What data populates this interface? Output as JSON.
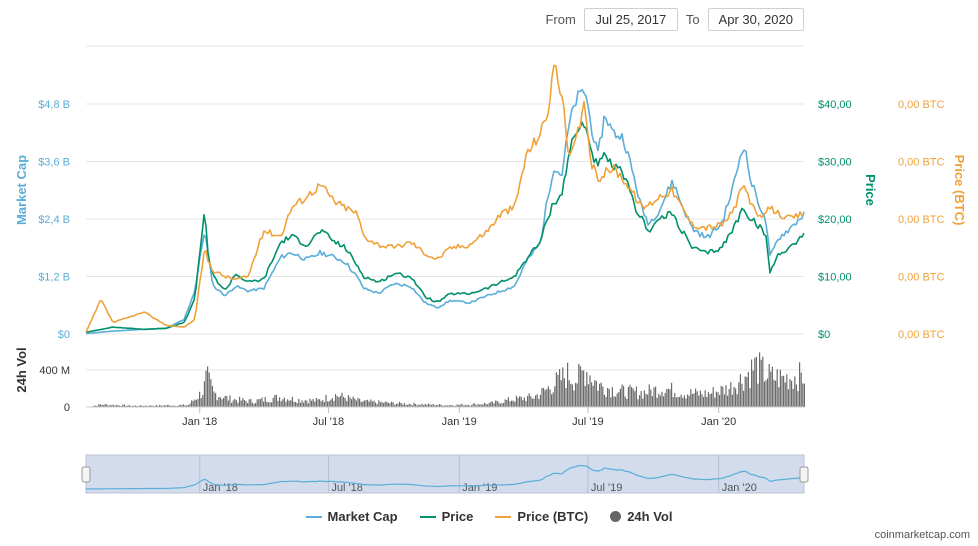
{
  "toolbar": {
    "from_label": "From",
    "from_value": "Jul 25, 2017",
    "to_label": "To",
    "to_value": "Apr 30, 2020"
  },
  "colors": {
    "market_cap": "#5aaed8",
    "price": "#00906b",
    "price_btc": "#f0a23a",
    "volume": "#6b6b6b",
    "navigator_fill": "#d3dcec"
  },
  "legend": {
    "market_cap": "Market Cap",
    "price": "Price",
    "price_btc": "Price (BTC)",
    "volume": "24h Vol"
  },
  "credit": "coinmarketcap.com",
  "chart_data": {
    "type": "line",
    "x_range": [
      "2017-07-25",
      "2020-04-30"
    ],
    "x_tick_labels": [
      "Jan '18",
      "Jul '18",
      "Jan '19",
      "Jul '19",
      "Jan '20"
    ],
    "x_tick_dates": [
      "2018-01-01",
      "2018-07-01",
      "2019-01-01",
      "2019-07-01",
      "2020-01-01"
    ],
    "axes": {
      "market_cap": {
        "title": "Market Cap",
        "ticks": [
          "$0",
          "$1,2 B",
          "$2,4 B",
          "$3,6 B",
          "$4,8 B"
        ],
        "range": [
          0,
          4.8
        ],
        "unit": "billion USD"
      },
      "price": {
        "title": "Price",
        "ticks": [
          "$0",
          "$10,00",
          "$20,00",
          "$30,00",
          "$40,00"
        ],
        "range": [
          0,
          40
        ]
      },
      "price_btc": {
        "title": "Price (BTC)",
        "ticks": [
          "0,00 BTC",
          "0,00 BTC",
          "0,00 BTC",
          "0,00 BTC",
          "0,00 BTC"
        ]
      },
      "volume": {
        "title": "24h Vol",
        "ticks": [
          "0",
          "400 M"
        ],
        "range": [
          0,
          400
        ],
        "unit": "million USD"
      }
    },
    "series": [
      {
        "name": "Market Cap",
        "axis": "market_cap",
        "points": [
          [
            "2017-07-25",
            0.01
          ],
          [
            "2017-09-01",
            0.06
          ],
          [
            "2017-10-15",
            0.1
          ],
          [
            "2017-11-15",
            0.12
          ],
          [
            "2017-12-10",
            0.3
          ],
          [
            "2017-12-25",
            0.9
          ],
          [
            "2018-01-08",
            2.2
          ],
          [
            "2018-01-12",
            1.7
          ],
          [
            "2018-01-20",
            1.0
          ],
          [
            "2018-02-06",
            0.8
          ],
          [
            "2018-02-20",
            1.0
          ],
          [
            "2018-03-10",
            0.9
          ],
          [
            "2018-04-01",
            0.95
          ],
          [
            "2018-04-25",
            1.6
          ],
          [
            "2018-05-10",
            1.7
          ],
          [
            "2018-06-01",
            1.55
          ],
          [
            "2018-06-20",
            1.7
          ],
          [
            "2018-07-10",
            1.6
          ],
          [
            "2018-07-25",
            1.5
          ],
          [
            "2018-08-10",
            1.2
          ],
          [
            "2018-08-20",
            0.95
          ],
          [
            "2018-09-10",
            0.85
          ],
          [
            "2018-10-01",
            1.05
          ],
          [
            "2018-10-25",
            1.0
          ],
          [
            "2018-11-14",
            0.65
          ],
          [
            "2018-12-01",
            0.55
          ],
          [
            "2018-12-20",
            0.7
          ],
          [
            "2019-01-15",
            0.65
          ],
          [
            "2019-02-10",
            0.8
          ],
          [
            "2019-03-01",
            0.9
          ],
          [
            "2019-03-20",
            1.0
          ],
          [
            "2019-04-05",
            1.5
          ],
          [
            "2019-04-25",
            1.9
          ],
          [
            "2019-05-05",
            2.8
          ],
          [
            "2019-05-14",
            3.5
          ],
          [
            "2019-05-25",
            3.3
          ],
          [
            "2019-06-05",
            4.4
          ],
          [
            "2019-06-15",
            4.9
          ],
          [
            "2019-06-27",
            5.1
          ],
          [
            "2019-07-05",
            4.4
          ],
          [
            "2019-07-15",
            3.7
          ],
          [
            "2019-07-25",
            4.6
          ],
          [
            "2019-08-05",
            4.2
          ],
          [
            "2019-08-20",
            4.1
          ],
          [
            "2019-09-05",
            3.2
          ],
          [
            "2019-09-15",
            2.6
          ],
          [
            "2019-09-25",
            2.3
          ],
          [
            "2019-10-10",
            2.6
          ],
          [
            "2019-10-28",
            3.2
          ],
          [
            "2019-11-10",
            2.7
          ],
          [
            "2019-11-25",
            2.2
          ],
          [
            "2019-12-15",
            2.0
          ],
          [
            "2020-01-05",
            2.3
          ],
          [
            "2020-01-20",
            3.0
          ],
          [
            "2020-02-05",
            4.0
          ],
          [
            "2020-02-15",
            3.2
          ],
          [
            "2020-02-25",
            2.8
          ],
          [
            "2020-03-08",
            2.3
          ],
          [
            "2020-03-13",
            1.6
          ],
          [
            "2020-03-25",
            2.0
          ],
          [
            "2020-04-10",
            2.2
          ],
          [
            "2020-04-30",
            2.5
          ]
        ]
      },
      {
        "name": "Price",
        "axis": "price",
        "points": [
          [
            "2017-07-25",
            0.3
          ],
          [
            "2017-09-01",
            1.2
          ],
          [
            "2017-10-15",
            0.8
          ],
          [
            "2017-11-15",
            1.0
          ],
          [
            "2017-12-10",
            2.0
          ],
          [
            "2017-12-25",
            6.0
          ],
          [
            "2018-01-08",
            22.0
          ],
          [
            "2018-01-12",
            14.0
          ],
          [
            "2018-01-20",
            10.0
          ],
          [
            "2018-02-06",
            7.5
          ],
          [
            "2018-02-20",
            10.5
          ],
          [
            "2018-03-10",
            9.0
          ],
          [
            "2018-04-01",
            9.5
          ],
          [
            "2018-04-25",
            16.0
          ],
          [
            "2018-05-10",
            17.0
          ],
          [
            "2018-06-01",
            15.5
          ],
          [
            "2018-06-20",
            18.0
          ],
          [
            "2018-07-10",
            16.0
          ],
          [
            "2018-07-25",
            15.0
          ],
          [
            "2018-08-10",
            12.0
          ],
          [
            "2018-08-20",
            10.0
          ],
          [
            "2018-09-10",
            9.0
          ],
          [
            "2018-10-01",
            10.5
          ],
          [
            "2018-10-25",
            10.0
          ],
          [
            "2018-11-14",
            6.5
          ],
          [
            "2018-12-01",
            5.5
          ],
          [
            "2018-12-20",
            7.0
          ],
          [
            "2019-01-15",
            7.0
          ],
          [
            "2019-02-10",
            8.0
          ],
          [
            "2019-03-01",
            9.0
          ],
          [
            "2019-03-20",
            10.0
          ],
          [
            "2019-04-05",
            13.0
          ],
          [
            "2019-04-25",
            16.0
          ],
          [
            "2019-05-05",
            20.0
          ],
          [
            "2019-05-14",
            23.0
          ],
          [
            "2019-05-25",
            24.0
          ],
          [
            "2019-06-05",
            32.0
          ],
          [
            "2019-06-15",
            35.0
          ],
          [
            "2019-06-27",
            37.0
          ],
          [
            "2019-07-05",
            32.0
          ],
          [
            "2019-07-15",
            29.0
          ],
          [
            "2019-07-25",
            31.0
          ],
          [
            "2019-08-05",
            29.0
          ],
          [
            "2019-08-20",
            28.0
          ],
          [
            "2019-09-05",
            22.0
          ],
          [
            "2019-09-15",
            20.0
          ],
          [
            "2019-09-25",
            18.0
          ],
          [
            "2019-10-10",
            20.0
          ],
          [
            "2019-10-28",
            21.0
          ],
          [
            "2019-11-10",
            18.0
          ],
          [
            "2019-11-25",
            15.0
          ],
          [
            "2019-12-15",
            14.0
          ],
          [
            "2020-01-05",
            15.0
          ],
          [
            "2020-01-20",
            18.0
          ],
          [
            "2020-02-05",
            22.0
          ],
          [
            "2020-02-15",
            20.0
          ],
          [
            "2020-02-25",
            19.0
          ],
          [
            "2020-03-08",
            17.0
          ],
          [
            "2020-03-13",
            10.5
          ],
          [
            "2020-03-25",
            14.0
          ],
          [
            "2020-04-10",
            15.0
          ],
          [
            "2020-04-30",
            17.5
          ]
        ]
      },
      {
        "name": "Price (BTC)",
        "axis": "price_btc",
        "points": [
          [
            "2017-07-25",
            0.3
          ],
          [
            "2017-08-15",
            6.0
          ],
          [
            "2017-09-01",
            2.0
          ],
          [
            "2017-10-15",
            3.8
          ],
          [
            "2017-11-15",
            1.5
          ],
          [
            "2017-12-10",
            1.2
          ],
          [
            "2017-12-25",
            2.5
          ],
          [
            "2018-01-08",
            15.0
          ],
          [
            "2018-01-12",
            13.0
          ],
          [
            "2018-01-20",
            11.0
          ],
          [
            "2018-02-06",
            10.0
          ],
          [
            "2018-02-20",
            9.5
          ],
          [
            "2018-03-10",
            10.0
          ],
          [
            "2018-04-01",
            18.0
          ],
          [
            "2018-04-25",
            17.0
          ],
          [
            "2018-05-10",
            22.0
          ],
          [
            "2018-06-01",
            24.0
          ],
          [
            "2018-06-20",
            26.0
          ],
          [
            "2018-07-10",
            23.0
          ],
          [
            "2018-07-25",
            22.0
          ],
          [
            "2018-08-10",
            21.0
          ],
          [
            "2018-08-20",
            17.0
          ],
          [
            "2018-09-10",
            15.5
          ],
          [
            "2018-10-01",
            15.0
          ],
          [
            "2018-10-25",
            16.0
          ],
          [
            "2018-11-14",
            14.0
          ],
          [
            "2018-12-01",
            13.0
          ],
          [
            "2018-12-20",
            15.0
          ],
          [
            "2019-01-15",
            15.5
          ],
          [
            "2019-02-10",
            18.0
          ],
          [
            "2019-03-01",
            21.0
          ],
          [
            "2019-03-20",
            22.0
          ],
          [
            "2019-04-05",
            31.0
          ],
          [
            "2019-04-25",
            35.0
          ],
          [
            "2019-05-05",
            38.0
          ],
          [
            "2019-05-14",
            47.0
          ],
          [
            "2019-05-25",
            42.0
          ],
          [
            "2019-06-05",
            30.0
          ],
          [
            "2019-06-15",
            34.0
          ],
          [
            "2019-06-27",
            40.0
          ],
          [
            "2019-07-05",
            30.0
          ],
          [
            "2019-07-15",
            27.0
          ],
          [
            "2019-07-25",
            28.0
          ],
          [
            "2019-08-05",
            29.0
          ],
          [
            "2019-08-20",
            27.0
          ],
          [
            "2019-09-05",
            24.0
          ],
          [
            "2019-09-15",
            22.0
          ],
          [
            "2019-09-25",
            22.5
          ],
          [
            "2019-10-10",
            24.0
          ],
          [
            "2019-10-28",
            25.0
          ],
          [
            "2019-11-10",
            22.0
          ],
          [
            "2019-11-25",
            19.0
          ],
          [
            "2019-12-15",
            18.5
          ],
          [
            "2020-01-05",
            19.0
          ],
          [
            "2020-01-20",
            21.0
          ],
          [
            "2020-02-05",
            26.0
          ],
          [
            "2020-02-15",
            23.0
          ],
          [
            "2020-02-25",
            20.0
          ],
          [
            "2020-03-08",
            21.0
          ],
          [
            "2020-03-13",
            22.0
          ],
          [
            "2020-03-25",
            21.0
          ],
          [
            "2020-04-10",
            20.0
          ],
          [
            "2020-04-30",
            21.0
          ]
        ]
      },
      {
        "name": "24h Vol",
        "axis": "volume",
        "type": "bar",
        "points": [
          [
            "2017-07-25",
            0
          ],
          [
            "2017-08-15",
            40
          ],
          [
            "2017-10-01",
            20
          ],
          [
            "2017-12-15",
            30
          ],
          [
            "2018-01-05",
            250
          ],
          [
            "2018-01-10",
            480
          ],
          [
            "2018-01-20",
            220
          ],
          [
            "2018-02-10",
            130
          ],
          [
            "2018-03-15",
            90
          ],
          [
            "2018-04-25",
            160
          ],
          [
            "2018-05-15",
            120
          ],
          [
            "2018-06-15",
            100
          ],
          [
            "2018-07-10",
            190
          ],
          [
            "2018-08-15",
            90
          ],
          [
            "2018-10-01",
            60
          ],
          [
            "2018-11-15",
            40
          ],
          [
            "2018-12-15",
            30
          ],
          [
            "2019-01-15",
            40
          ],
          [
            "2019-02-15",
            60
          ],
          [
            "2019-03-15",
            120
          ],
          [
            "2019-04-15",
            160
          ],
          [
            "2019-05-01",
            260
          ],
          [
            "2019-05-15",
            380
          ],
          [
            "2019-06-01",
            520
          ],
          [
            "2019-06-15",
            440
          ],
          [
            "2019-06-27",
            600
          ],
          [
            "2019-07-15",
            350
          ],
          [
            "2019-08-15",
            250
          ],
          [
            "2019-09-15",
            230
          ],
          [
            "2019-10-15",
            300
          ],
          [
            "2019-11-15",
            220
          ],
          [
            "2019-12-15",
            210
          ],
          [
            "2020-01-15",
            300
          ],
          [
            "2020-02-10",
            520
          ],
          [
            "2020-02-20",
            660
          ],
          [
            "2020-03-13",
            480
          ],
          [
            "2020-04-01",
            460
          ],
          [
            "2020-04-30",
            500
          ]
        ]
      }
    ],
    "legend_position": "bottom"
  }
}
